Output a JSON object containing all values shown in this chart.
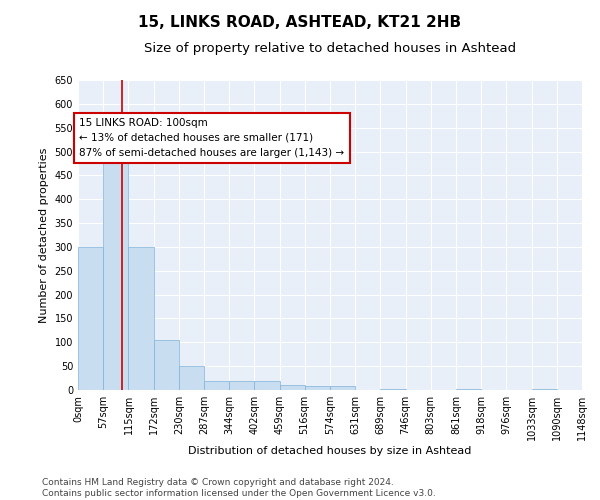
{
  "title": "15, LINKS ROAD, ASHTEAD, KT21 2HB",
  "subtitle": "Size of property relative to detached houses in Ashtead",
  "xlabel": "Distribution of detached houses by size in Ashtead",
  "ylabel": "Number of detached properties",
  "bar_color": "#c9ddf0",
  "bar_edge_color": "#7fb3d9",
  "background_color": "#e8eff8",
  "grid_color": "#ffffff",
  "bin_edges": [
    0,
    57,
    115,
    172,
    230,
    287,
    344,
    402,
    459,
    516,
    574,
    631,
    689,
    746,
    803,
    861,
    918,
    976,
    1033,
    1090,
    1148
  ],
  "bin_labels": [
    "0sqm",
    "57sqm",
    "115sqm",
    "172sqm",
    "230sqm",
    "287sqm",
    "344sqm",
    "402sqm",
    "459sqm",
    "516sqm",
    "574sqm",
    "631sqm",
    "689sqm",
    "746sqm",
    "803sqm",
    "861sqm",
    "918sqm",
    "976sqm",
    "1033sqm",
    "1090sqm",
    "1148sqm"
  ],
  "bar_heights": [
    300,
    520,
    300,
    105,
    50,
    18,
    18,
    18,
    10,
    8,
    8,
    0,
    3,
    0,
    0,
    3,
    0,
    0,
    3,
    0,
    3
  ],
  "ylim": [
    0,
    650
  ],
  "yticks": [
    0,
    50,
    100,
    150,
    200,
    250,
    300,
    350,
    400,
    450,
    500,
    550,
    600,
    650
  ],
  "property_line_x": 100,
  "property_line_color": "#cc0000",
  "annotation_text": "15 LINKS ROAD: 100sqm\n← 13% of detached houses are smaller (171)\n87% of semi-detached houses are larger (1,143) →",
  "annotation_box_color": "#ffffff",
  "annotation_box_edge": "#cc0000",
  "footer_text": "Contains HM Land Registry data © Crown copyright and database right 2024.\nContains public sector information licensed under the Open Government Licence v3.0.",
  "title_fontsize": 11,
  "subtitle_fontsize": 9.5,
  "axis_label_fontsize": 8,
  "tick_fontsize": 7,
  "annotation_fontsize": 7.5,
  "footer_fontsize": 6.5
}
